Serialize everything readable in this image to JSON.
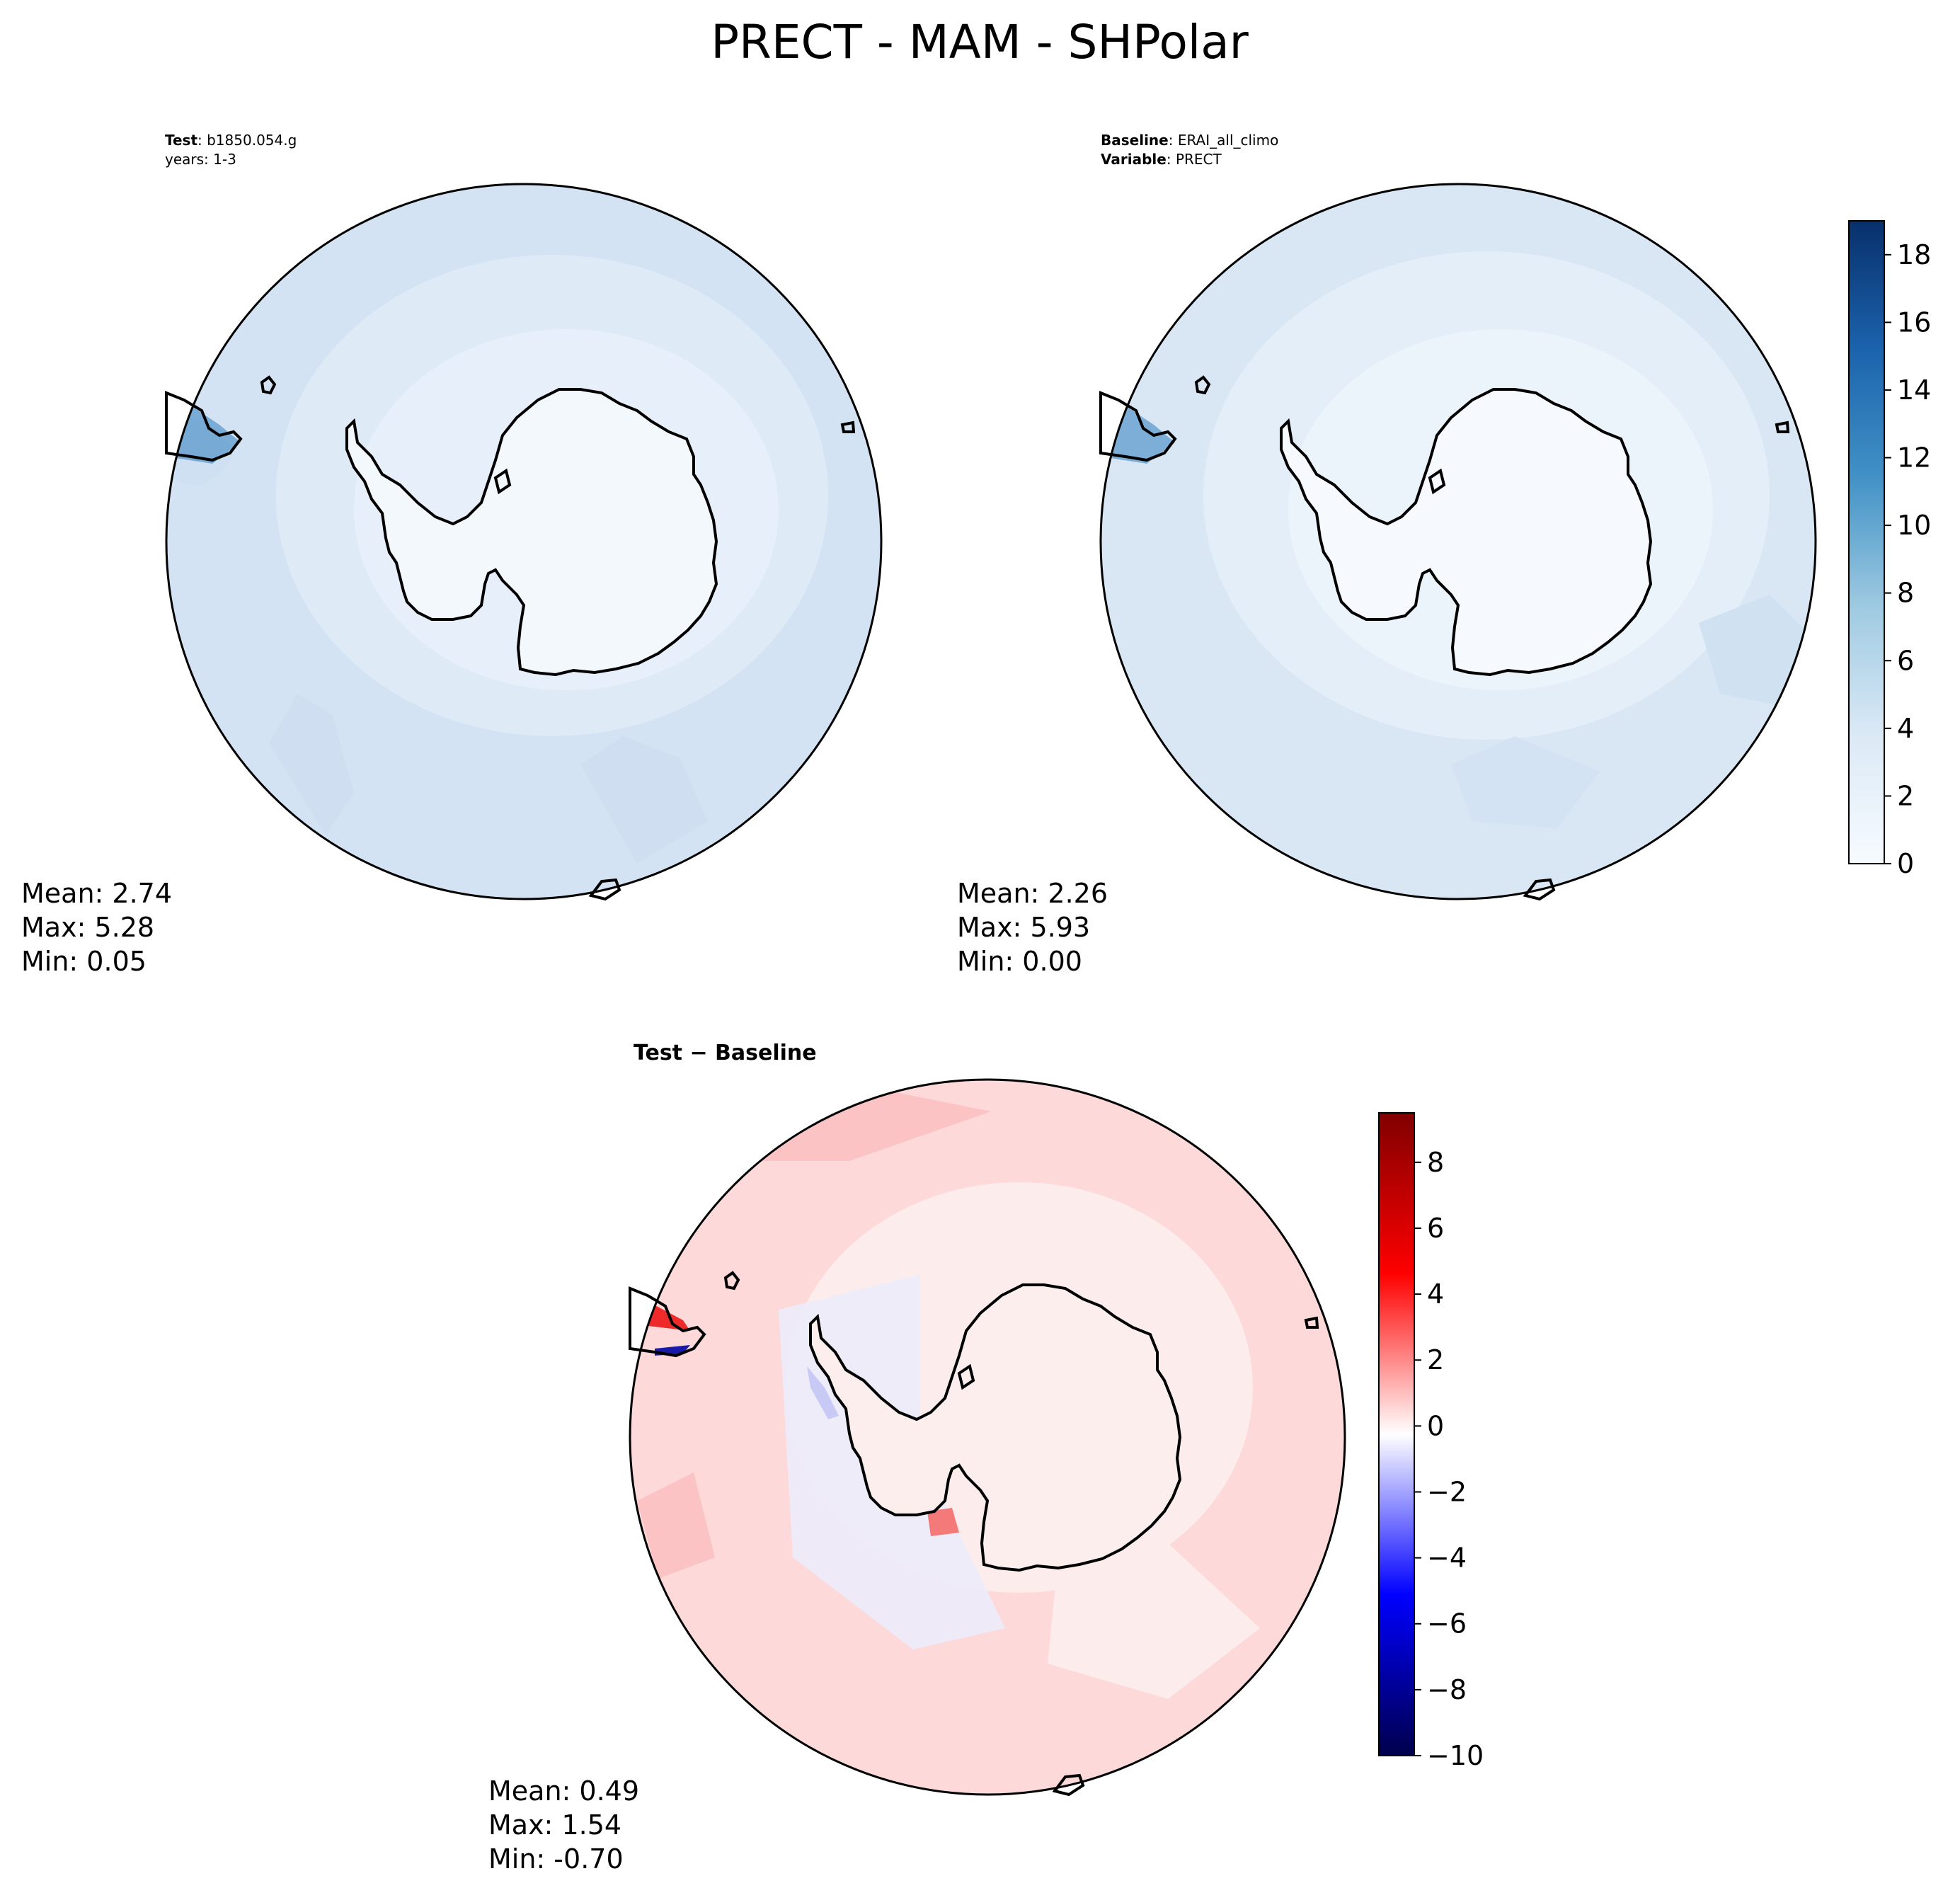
{
  "figure": {
    "title": "PRECT - MAM - SHPolar"
  },
  "panels": {
    "test": {
      "label_bold": "Test",
      "label_rest": ": b1850.054.g",
      "subline": "years: 1-3",
      "stats": {
        "mean": "Mean:  2.74",
        "max": "Max:  5.28",
        "min": "Min:  0.05"
      }
    },
    "baseline": {
      "label_bold": "Baseline",
      "label_rest": ": ERAI_all_climo",
      "sub_bold": "Variable",
      "sub_rest": ": PRECT",
      "stats": {
        "mean": "Mean:  2.26",
        "max": "Max:  5.93",
        "min": "Min:  0.00"
      }
    },
    "diff": {
      "title": "Test − Baseline",
      "stats": {
        "mean": "Mean:  0.49",
        "max": "Max:  1.54",
        "min": "Min: -0.70"
      }
    }
  },
  "colorbars": {
    "main": {
      "colormap": "Blues",
      "min": 0,
      "max": 19,
      "ticks": [
        "0",
        "2",
        "4",
        "6",
        "8",
        "10",
        "12",
        "14",
        "16",
        "18"
      ]
    },
    "diff": {
      "colormap": "seismic",
      "min": -10,
      "max": 9.5,
      "ticks": [
        "−10",
        "−8",
        "−6",
        "−4",
        "−2",
        "0",
        "2",
        "4",
        "6",
        "8"
      ]
    }
  },
  "colors": {
    "blue_ocean": "#d3e3f3",
    "blue_mid": "#deebf7",
    "blue_light": "#e9f2fb",
    "blue_ice": "#f3f8fd",
    "red_light": "#fdd9d9",
    "red_faint": "#fdecec",
    "blue_faint": "#ececfc"
  }
}
